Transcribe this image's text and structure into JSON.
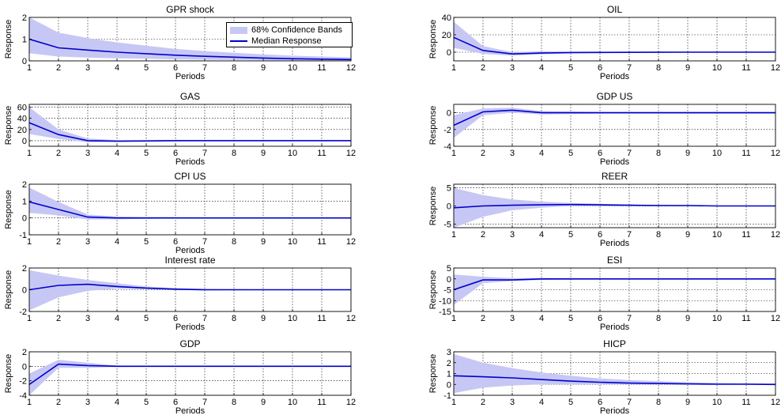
{
  "colors": {
    "band": "#c7c7f5",
    "median": "#0000cc",
    "grid": "#000000"
  },
  "legend": {
    "band_label": "68% Confidence Bands",
    "median_label": "Median Response"
  },
  "chart_data": [
    {
      "type": "area",
      "title": "GPR shock",
      "xlabel": "Periods",
      "ylabel": "Response",
      "xlim": [
        1,
        12
      ],
      "ylim": [
        0,
        2
      ],
      "yticks": [
        0,
        1,
        2
      ],
      "x": [
        1,
        2,
        3,
        4,
        5,
        6,
        7,
        8,
        9,
        10,
        11,
        12
      ],
      "series": [
        {
          "name": "Median Response",
          "values": [
            1.0,
            0.6,
            0.5,
            0.4,
            0.33,
            0.26,
            0.21,
            0.17,
            0.13,
            0.1,
            0.08,
            0.06
          ]
        },
        {
          "name": "68% Confidence Bands",
          "lower": [
            0.35,
            0.2,
            0.15,
            0.12,
            0.1,
            0.07,
            0.05,
            0.04,
            0.03,
            0.02,
            0.02,
            0.01
          ],
          "upper": [
            2.0,
            1.3,
            1.05,
            0.85,
            0.7,
            0.55,
            0.45,
            0.37,
            0.3,
            0.24,
            0.2,
            0.16
          ]
        }
      ]
    },
    {
      "type": "area",
      "title": "OIL",
      "xlabel": "Periods",
      "ylabel": "Response",
      "xlim": [
        1,
        12
      ],
      "ylim": [
        -10,
        40
      ],
      "yticks": [
        0,
        20,
        40
      ],
      "x": [
        1,
        2,
        3,
        4,
        5,
        6,
        7,
        8,
        9,
        10,
        11,
        12
      ],
      "series": [
        {
          "name": "Median Response",
          "values": [
            17,
            2,
            -2,
            -1,
            -0.5,
            -0.3,
            -0.2,
            -0.1,
            0,
            0,
            0,
            0
          ]
        },
        {
          "name": "68% Confidence Bands",
          "lower": [
            5,
            -2,
            -4,
            -2.5,
            -1.5,
            -1,
            -0.7,
            -0.5,
            -0.4,
            -0.3,
            -0.3,
            -0.2
          ],
          "upper": [
            35,
            7,
            0,
            1,
            0.8,
            0.6,
            0.5,
            0.4,
            0.3,
            0.3,
            0.3,
            0.2
          ]
        }
      ]
    },
    {
      "type": "area",
      "title": "GAS",
      "xlabel": "Periods",
      "ylabel": "Response",
      "xlim": [
        1,
        12
      ],
      "ylim": [
        -10,
        65
      ],
      "yticks": [
        0,
        20,
        40,
        60
      ],
      "x": [
        1,
        2,
        3,
        4,
        5,
        6,
        7,
        8,
        9,
        10,
        11,
        12
      ],
      "series": [
        {
          "name": "Median Response",
          "values": [
            32,
            11,
            0,
            -1,
            -0.5,
            0,
            0,
            0,
            0,
            0,
            0,
            0
          ]
        },
        {
          "name": "68% Confidence Bands",
          "lower": [
            12,
            3,
            -3,
            -2,
            -1.5,
            -1,
            -0.8,
            -0.6,
            -0.5,
            -0.4,
            -0.3,
            -0.3
          ],
          "upper": [
            60,
            20,
            4,
            1,
            1,
            1,
            0.8,
            0.6,
            0.5,
            0.4,
            0.3,
            0.3
          ]
        }
      ]
    },
    {
      "type": "area",
      "title": "GDP US",
      "xlabel": "Periods",
      "ylabel": "Response",
      "xlim": [
        1,
        12
      ],
      "ylim": [
        -4,
        1
      ],
      "yticks": [
        -4,
        -2,
        0
      ],
      "x": [
        1,
        2,
        3,
        4,
        5,
        6,
        7,
        8,
        9,
        10,
        11,
        12
      ],
      "series": [
        {
          "name": "Median Response",
          "values": [
            -1.5,
            0.1,
            0.3,
            0,
            0,
            0,
            0,
            0,
            0,
            0,
            0,
            0
          ]
        },
        {
          "name": "68% Confidence Bands",
          "lower": [
            -3.0,
            -0.3,
            0,
            -0.2,
            -0.15,
            -0.1,
            -0.1,
            -0.1,
            -0.1,
            -0.1,
            -0.1,
            -0.1
          ],
          "upper": [
            -0.3,
            0.5,
            0.6,
            0.2,
            0.15,
            0.1,
            0.1,
            0.1,
            0.1,
            0.1,
            0.1,
            0.1
          ]
        }
      ]
    },
    {
      "type": "area",
      "title": "CPI US",
      "xlabel": "Periods",
      "ylabel": "Response",
      "xlim": [
        1,
        12
      ],
      "ylim": [
        -1,
        2
      ],
      "yticks": [
        -1,
        0,
        1,
        2
      ],
      "x": [
        1,
        2,
        3,
        4,
        5,
        6,
        7,
        8,
        9,
        10,
        11,
        12
      ],
      "series": [
        {
          "name": "Median Response",
          "values": [
            0.95,
            0.5,
            0.05,
            0,
            0,
            0,
            0,
            0,
            0,
            0,
            0,
            0
          ]
        },
        {
          "name": "68% Confidence Bands",
          "lower": [
            0.3,
            0.15,
            -0.1,
            -0.08,
            -0.05,
            -0.04,
            -0.03,
            -0.03,
            -0.02,
            -0.02,
            -0.02,
            -0.02
          ],
          "upper": [
            1.8,
            0.95,
            0.2,
            0.08,
            0.05,
            0.04,
            0.03,
            0.03,
            0.02,
            0.02,
            0.02,
            0.02
          ]
        }
      ]
    },
    {
      "type": "area",
      "title": "REER",
      "xlabel": "Periods",
      "ylabel": "Response",
      "xlim": [
        1,
        12
      ],
      "ylim": [
        -6,
        6
      ],
      "yticks": [
        -5,
        0,
        5
      ],
      "x": [
        1,
        2,
        3,
        4,
        5,
        6,
        7,
        8,
        9,
        10,
        11,
        12
      ],
      "series": [
        {
          "name": "Median Response",
          "values": [
            -0.5,
            0,
            0.2,
            0.3,
            0.4,
            0.3,
            0.2,
            0.1,
            0.1,
            0,
            0,
            0
          ]
        },
        {
          "name": "68% Confidence Bands",
          "lower": [
            -6,
            -3,
            -1.2,
            -0.5,
            0,
            0,
            0,
            0,
            0,
            0,
            0,
            0
          ],
          "upper": [
            5,
            3,
            1.8,
            1.2,
            0.8,
            0.6,
            0.4,
            0.3,
            0.2,
            0.1,
            0.1,
            0.1
          ]
        }
      ]
    },
    {
      "type": "area",
      "title": "Interest rate",
      "xlabel": "Periods",
      "ylabel": "Response",
      "xlim": [
        1,
        12
      ],
      "ylim": [
        -2,
        2
      ],
      "yticks": [
        -2,
        0,
        2
      ],
      "x": [
        1,
        2,
        3,
        4,
        5,
        6,
        7,
        8,
        9,
        10,
        11,
        12
      ],
      "series": [
        {
          "name": "Median Response",
          "values": [
            0,
            0.4,
            0.5,
            0.3,
            0.15,
            0.05,
            0,
            0,
            0,
            0,
            0,
            0
          ]
        },
        {
          "name": "68% Confidence Bands",
          "lower": [
            -1.9,
            -0.7,
            -0.1,
            0.1,
            0.05,
            0,
            -0.05,
            -0.03,
            -0.02,
            -0.02,
            -0.02,
            -0.02
          ],
          "upper": [
            1.8,
            1.3,
            0.9,
            0.6,
            0.3,
            0.15,
            0.08,
            0.05,
            0.03,
            0.02,
            0.02,
            0.02
          ]
        }
      ]
    },
    {
      "type": "area",
      "title": "ESI",
      "xlabel": "Periods",
      "ylabel": "Response",
      "xlim": [
        1,
        12
      ],
      "ylim": [
        -15,
        5
      ],
      "yticks": [
        -15,
        -10,
        -5,
        0,
        5
      ],
      "x": [
        1,
        2,
        3,
        4,
        5,
        6,
        7,
        8,
        9,
        10,
        11,
        12
      ],
      "series": [
        {
          "name": "Median Response",
          "values": [
            -5,
            -0.5,
            -0.5,
            0,
            0,
            0,
            0,
            0,
            0,
            0,
            0,
            0
          ]
        },
        {
          "name": "68% Confidence Bands",
          "lower": [
            -12,
            -2,
            -1,
            -0.5,
            -0.3,
            -0.2,
            -0.1,
            -0.1,
            -0.1,
            -0.1,
            -0.1,
            -0.1
          ],
          "upper": [
            2,
            1,
            0.3,
            0.4,
            0.3,
            0.2,
            0.1,
            0.1,
            0.1,
            0.1,
            0.1,
            0.1
          ]
        }
      ]
    },
    {
      "type": "area",
      "title": "GDP",
      "xlabel": "Periods",
      "ylabel": "Response",
      "xlim": [
        1,
        12
      ],
      "ylim": [
        -4,
        2
      ],
      "yticks": [
        -4,
        -2,
        0,
        2
      ],
      "x": [
        1,
        2,
        3,
        4,
        5,
        6,
        7,
        8,
        9,
        10,
        11,
        12
      ],
      "series": [
        {
          "name": "Median Response",
          "values": [
            -2.5,
            0.3,
            0.1,
            0,
            0,
            0,
            0,
            0,
            0,
            0,
            0,
            0
          ]
        },
        {
          "name": "68% Confidence Bands",
          "lower": [
            -4,
            -0.2,
            -0.2,
            -0.1,
            -0.05,
            -0.05,
            -0.05,
            -0.05,
            -0.05,
            -0.05,
            -0.05,
            -0.05
          ],
          "upper": [
            -1,
            0.9,
            0.5,
            0.1,
            0.05,
            0.05,
            0.05,
            0.05,
            0.05,
            0.05,
            0.05,
            0.05
          ]
        }
      ]
    },
    {
      "type": "area",
      "title": "HICP",
      "xlabel": "Periods",
      "ylabel": "Response",
      "xlim": [
        1,
        12
      ],
      "ylim": [
        -1,
        3
      ],
      "yticks": [
        -1,
        0,
        1,
        2,
        3
      ],
      "x": [
        1,
        2,
        3,
        4,
        5,
        6,
        7,
        8,
        9,
        10,
        11,
        12
      ],
      "series": [
        {
          "name": "Median Response",
          "values": [
            0.8,
            0.7,
            0.6,
            0.45,
            0.3,
            0.2,
            0.12,
            0.08,
            0.05,
            0.02,
            0.02,
            0
          ]
        },
        {
          "name": "68% Confidence Bands",
          "lower": [
            -0.8,
            -0.3,
            -0.1,
            0,
            0,
            0,
            0,
            0,
            0,
            0,
            0,
            0
          ],
          "upper": [
            2.8,
            2.0,
            1.5,
            1.1,
            0.8,
            0.55,
            0.4,
            0.3,
            0.2,
            0.15,
            0.1,
            0.08
          ]
        }
      ]
    }
  ]
}
